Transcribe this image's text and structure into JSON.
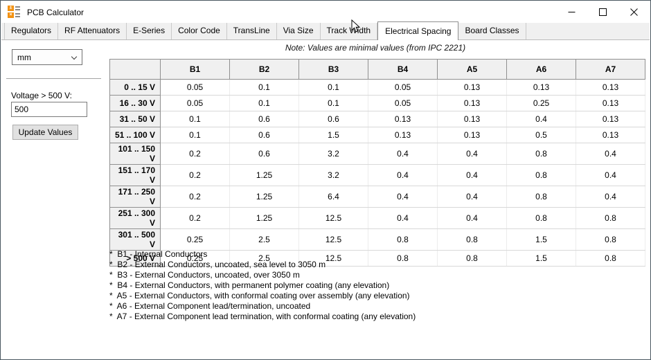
{
  "window": {
    "title": "PCB Calculator"
  },
  "tabs": [
    {
      "label": "Regulators",
      "active": false
    },
    {
      "label": "RF Attenuators",
      "active": false
    },
    {
      "label": "E-Series",
      "active": false
    },
    {
      "label": "Color Code",
      "active": false
    },
    {
      "label": "TransLine",
      "active": false
    },
    {
      "label": "Via Size",
      "active": false
    },
    {
      "label": "Track Width",
      "active": false
    },
    {
      "label": "Electrical Spacing",
      "active": true
    },
    {
      "label": "Board Classes",
      "active": false
    }
  ],
  "note": "Note: Values are minimal values (from IPC 2221)",
  "panel": {
    "unit": "mm",
    "voltage_label": "Voltage > 500 V:",
    "voltage_value": "500",
    "update_button": "Update Values"
  },
  "table": {
    "columns": [
      "B1",
      "B2",
      "B3",
      "B4",
      "A5",
      "A6",
      "A7"
    ],
    "rows": [
      {
        "label": "0 .. 15 V",
        "values": [
          "0.05",
          "0.1",
          "0.1",
          "0.05",
          "0.13",
          "0.13",
          "0.13"
        ]
      },
      {
        "label": "16 .. 30 V",
        "values": [
          "0.05",
          "0.1",
          "0.1",
          "0.05",
          "0.13",
          "0.25",
          "0.13"
        ]
      },
      {
        "label": "31 .. 50 V",
        "values": [
          "0.1",
          "0.6",
          "0.6",
          "0.13",
          "0.13",
          "0.4",
          "0.13"
        ]
      },
      {
        "label": "51 .. 100 V",
        "values": [
          "0.1",
          "0.6",
          "1.5",
          "0.13",
          "0.13",
          "0.5",
          "0.13"
        ]
      },
      {
        "label": "101 .. 150 V",
        "values": [
          "0.2",
          "0.6",
          "3.2",
          "0.4",
          "0.4",
          "0.8",
          "0.4"
        ]
      },
      {
        "label": "151 .. 170 V",
        "values": [
          "0.2",
          "1.25",
          "3.2",
          "0.4",
          "0.4",
          "0.8",
          "0.4"
        ]
      },
      {
        "label": "171 .. 250 V",
        "values": [
          "0.2",
          "1.25",
          "6.4",
          "0.4",
          "0.4",
          "0.8",
          "0.4"
        ]
      },
      {
        "label": "251 .. 300 V",
        "values": [
          "0.2",
          "1.25",
          "12.5",
          "0.4",
          "0.4",
          "0.8",
          "0.8"
        ]
      },
      {
        "label": "301 .. 500 V",
        "values": [
          "0.25",
          "2.5",
          "12.5",
          "0.8",
          "0.8",
          "1.5",
          "0.8"
        ]
      },
      {
        "label": "> 500 V",
        "values": [
          "0.25",
          "2.5",
          "12.5",
          "0.8",
          "0.8",
          "1.5",
          "0.8"
        ]
      }
    ]
  },
  "footnotes": [
    "*  B1 - Internal Conductors",
    "*  B2 - External Conductors, uncoated, sea level to 3050 m",
    "*  B3 - External Conductors, uncoated, over 3050 m",
    "*  B4 - External Conductors, with permanent polymer coating (any elevation)",
    "*  A5 - External Conductors, with conformal coating over assembly (any elevation)",
    "*  A6 - External Component lead/termination, uncoated",
    "*  A7 - External Component lead termination, with conformal coating (any elevation)"
  ],
  "icons": {
    "app": "calculator-icon",
    "minimize": "minimize-icon",
    "maximize": "maximize-icon",
    "close": "close-icon",
    "combo": "chevron-down-icon",
    "pointer": "mouse-cursor-icon"
  },
  "colors": {
    "accent_orange": "#f29111",
    "chrome_bg": "#f0f0f0",
    "table_border_dark": "#8f8f8f",
    "window_border": "#4a5760"
  }
}
